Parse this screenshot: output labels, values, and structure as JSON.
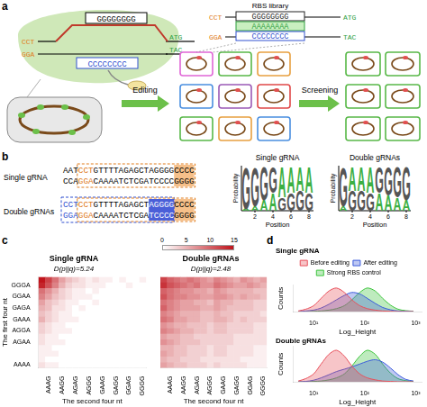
{
  "panels": {
    "a": {
      "label": "a",
      "complex": {
        "pam_top": "CCT",
        "pam_bottom": "GGA",
        "guide": "GGGGGGGG",
        "target": "CCCCCCCC",
        "start_top": "ATG",
        "start_bottom": "TAC"
      },
      "library": {
        "title": "RBS library",
        "pam_top": "CCT",
        "pam_bottom": "GGA",
        "rows": [
          "GGGGGGGG",
          "AAAAAAAA",
          "CCCCCCCC"
        ],
        "start_top": "ATG",
        "start_bottom": "TAC"
      },
      "steps": [
        "Editing",
        "Screening"
      ]
    },
    "b": {
      "label": "b",
      "sequences": [
        {
          "name": "Single gRNA",
          "top": "AATCCTGTTTTAGAGCTAGGGGCCCC",
          "bottom": "CCAGGACAAAATCTCGATCCCCGGGG"
        },
        {
          "name": "Double gRNAs",
          "top": "CCTCCTGTTTTAGAGCTAGGGGCCCC",
          "bottom": "GGAGGACAAAATCTCGATCCCCGGGG"
        }
      ],
      "logos": [
        {
          "title": "Single gRNA",
          "ylabel": "Probability",
          "xlabel": "Position",
          "ylim": [
            0,
            1
          ],
          "xticks": [
            2,
            4,
            6,
            8
          ],
          "positions": [
            [
              {
                "letter": "A",
                "p": 0.05
              },
              {
                "letter": "G",
                "p": 0.95
              }
            ],
            [
              {
                "letter": "A",
                "p": 0.1
              },
              {
                "letter": "G",
                "p": 0.9
              }
            ],
            [
              {
                "letter": "A",
                "p": 0.25
              },
              {
                "letter": "G",
                "p": 0.75
              }
            ],
            [
              {
                "letter": "A",
                "p": 0.4
              },
              {
                "letter": "G",
                "p": 0.6
              }
            ],
            [
              {
                "letter": "G",
                "p": 0.3
              },
              {
                "letter": "A",
                "p": 0.7
              }
            ],
            [
              {
                "letter": "G",
                "p": 0.4
              },
              {
                "letter": "A",
                "p": 0.6
              }
            ],
            [
              {
                "letter": "G",
                "p": 0.45
              },
              {
                "letter": "A",
                "p": 0.55
              }
            ],
            [
              {
                "letter": "G",
                "p": 0.4
              },
              {
                "letter": "A",
                "p": 0.6
              }
            ]
          ]
        },
        {
          "title": "Double gRNAs",
          "ylabel": "Probability",
          "xlabel": "Position",
          "ylim": [
            0,
            1
          ],
          "xticks": [
            2,
            4,
            6,
            8
          ],
          "positions": [
            [
              {
                "letter": "A",
                "p": 0.1
              },
              {
                "letter": "G",
                "p": 0.9
              }
            ],
            [
              {
                "letter": "G",
                "p": 0.45
              },
              {
                "letter": "A",
                "p": 0.55
              }
            ],
            [
              {
                "letter": "G",
                "p": 0.45
              },
              {
                "letter": "A",
                "p": 0.55
              }
            ],
            [
              {
                "letter": "G",
                "p": 0.4
              },
              {
                "letter": "A",
                "p": 0.6
              }
            ],
            [
              {
                "letter": "A",
                "p": 0.4
              },
              {
                "letter": "G",
                "p": 0.6
              }
            ],
            [
              {
                "letter": "A",
                "p": 0.35
              },
              {
                "letter": "G",
                "p": 0.65
              }
            ],
            [
              {
                "letter": "A",
                "p": 0.3
              },
              {
                "letter": "G",
                "p": 0.7
              }
            ],
            [
              {
                "letter": "A",
                "p": 0.25
              },
              {
                "letter": "G",
                "p": 0.75
              }
            ]
          ]
        }
      ]
    },
    "c": {
      "label": "c"
    },
    "d": {
      "label": "d"
    }
  },
  "chart_data": [
    {
      "type": "heatmap",
      "title": "Single gRNA",
      "subtitle": "D(p||q)=5.24",
      "xlabel": "The second four nt",
      "ylabel": "The first four nt",
      "x_categories": [
        null,
        "AAAG",
        null,
        "AAGG",
        null,
        "AGAG",
        null,
        "AGGG",
        null,
        "GAAG",
        null,
        "GAGG",
        null,
        "GGAG",
        null,
        "GGGG"
      ],
      "y_categories": [
        null,
        "GGGA",
        null,
        "GGAA",
        null,
        "GAGA",
        null,
        "GAAA",
        null,
        "AGGA",
        null,
        "AGAA",
        null,
        null,
        null,
        "AAAA"
      ],
      "color": "#c0141c",
      "color_range": [
        0,
        15
      ],
      "color_ticks": [
        0,
        5,
        10,
        15
      ],
      "cells": [
        [
          15,
          12,
          9,
          6,
          4,
          3,
          2,
          1,
          2,
          1,
          1,
          0,
          1,
          0,
          0,
          1
        ],
        [
          14,
          11,
          8,
          5,
          3,
          2,
          2,
          1,
          1,
          1,
          0,
          0,
          0,
          1,
          0,
          0
        ],
        [
          9,
          7,
          5,
          3,
          2,
          1,
          1,
          0,
          1,
          0,
          0,
          0,
          0,
          0,
          0,
          0
        ],
        [
          8,
          6,
          4,
          3,
          2,
          1,
          1,
          1,
          0,
          0,
          0,
          0,
          0,
          0,
          0,
          0
        ],
        [
          6,
          4,
          3,
          2,
          1,
          1,
          0,
          0,
          1,
          0,
          0,
          0,
          0,
          0,
          0,
          0
        ],
        [
          5,
          4,
          2,
          2,
          1,
          0,
          1,
          0,
          0,
          0,
          0,
          0,
          0,
          0,
          0,
          0
        ],
        [
          4,
          3,
          2,
          1,
          1,
          0,
          0,
          0,
          0,
          0,
          0,
          0,
          0,
          0,
          0,
          0
        ],
        [
          5,
          3,
          2,
          1,
          1,
          1,
          0,
          0,
          0,
          0,
          0,
          0,
          0,
          0,
          0,
          0
        ],
        [
          3,
          2,
          1,
          1,
          0,
          0,
          0,
          0,
          0,
          0,
          0,
          0,
          0,
          0,
          0,
          0
        ],
        [
          3,
          2,
          1,
          1,
          1,
          0,
          0,
          0,
          0,
          0,
          0,
          0,
          0,
          0,
          0,
          0
        ],
        [
          2,
          1,
          1,
          0,
          0,
          0,
          0,
          0,
          0,
          0,
          0,
          0,
          0,
          0,
          0,
          0
        ],
        [
          2,
          1,
          1,
          1,
          0,
          0,
          0,
          0,
          0,
          0,
          0,
          0,
          0,
          0,
          0,
          0
        ],
        [
          1,
          1,
          0,
          0,
          0,
          0,
          0,
          0,
          0,
          0,
          0,
          0,
          0,
          0,
          0,
          0
        ],
        [
          1,
          1,
          1,
          0,
          0,
          0,
          0,
          0,
          0,
          0,
          0,
          0,
          0,
          0,
          0,
          0
        ],
        [
          1,
          0,
          0,
          0,
          0,
          0,
          0,
          0,
          0,
          0,
          0,
          0,
          0,
          0,
          0,
          0
        ],
        [
          2,
          1,
          1,
          0,
          0,
          0,
          0,
          0,
          0,
          0,
          0,
          0,
          0,
          0,
          0,
          0
        ]
      ]
    },
    {
      "type": "heatmap",
      "title": "Double gRNAs",
      "subtitle": "D(p||q)=2.48",
      "xlabel": "The second four nt",
      "tick_labels": "x",
      "x_categories": [
        null,
        "AAAG",
        null,
        "AAGG",
        null,
        "AGAG",
        null,
        "AGGG",
        null,
        "GAAG",
        null,
        "GAGG",
        null,
        "GGAG",
        null,
        "GGGG"
      ],
      "color": "#c0141c",
      "color_range": [
        0,
        15
      ],
      "cells": [
        [
          12,
          10,
          9,
          8,
          9,
          8,
          7,
          6,
          8,
          7,
          6,
          5,
          7,
          6,
          5,
          6
        ],
        [
          13,
          11,
          10,
          9,
          8,
          9,
          7,
          7,
          9,
          8,
          7,
          6,
          6,
          7,
          6,
          5
        ],
        [
          10,
          9,
          8,
          7,
          7,
          6,
          6,
          5,
          7,
          6,
          5,
          5,
          5,
          5,
          4,
          4
        ],
        [
          11,
          9,
          8,
          8,
          7,
          7,
          6,
          6,
          7,
          7,
          6,
          5,
          6,
          5,
          5,
          4
        ],
        [
          9,
          8,
          7,
          6,
          6,
          5,
          5,
          4,
          6,
          5,
          5,
          4,
          4,
          4,
          3,
          3
        ],
        [
          10,
          8,
          7,
          6,
          6,
          6,
          5,
          5,
          6,
          5,
          4,
          4,
          4,
          4,
          3,
          3
        ],
        [
          8,
          7,
          6,
          5,
          5,
          5,
          4,
          4,
          5,
          4,
          4,
          3,
          3,
          3,
          3,
          2
        ],
        [
          9,
          8,
          6,
          6,
          5,
          5,
          4,
          4,
          5,
          5,
          4,
          3,
          4,
          3,
          3,
          3
        ],
        [
          7,
          6,
          5,
          5,
          4,
          4,
          4,
          3,
          4,
          4,
          3,
          3,
          3,
          3,
          2,
          2
        ],
        [
          8,
          7,
          6,
          5,
          5,
          4,
          4,
          3,
          4,
          4,
          3,
          3,
          3,
          3,
          2,
          2
        ],
        [
          6,
          5,
          5,
          4,
          4,
          3,
          3,
          3,
          3,
          3,
          3,
          2,
          2,
          2,
          2,
          2
        ],
        [
          7,
          6,
          5,
          4,
          4,
          4,
          3,
          3,
          3,
          3,
          3,
          2,
          2,
          2,
          2,
          2
        ],
        [
          5,
          5,
          4,
          4,
          3,
          3,
          3,
          2,
          3,
          3,
          2,
          2,
          2,
          2,
          1,
          1
        ],
        [
          6,
          5,
          4,
          4,
          3,
          3,
          3,
          2,
          3,
          3,
          2,
          2,
          2,
          2,
          1,
          1
        ],
        [
          5,
          4,
          4,
          3,
          3,
          3,
          2,
          2,
          2,
          2,
          2,
          2,
          1,
          1,
          1,
          1
        ],
        [
          6,
          5,
          4,
          4,
          3,
          3,
          3,
          2,
          3,
          2,
          2,
          2,
          2,
          1,
          1,
          1
        ]
      ]
    },
    {
      "type": "area",
      "title": "Single gRNA",
      "xlabel": "Log_Height",
      "ylabel": "Counts",
      "log": "x",
      "grid": false,
      "legend": "top",
      "tick_labels": "x",
      "x": [
        5,
        7,
        10,
        14,
        20,
        28,
        40,
        56,
        80,
        112,
        160,
        224,
        320,
        450,
        640,
        900
      ],
      "xlim": [
        4,
        1300
      ],
      "xticks": [
        {
          "value": 10,
          "label": "10¹"
        },
        {
          "value": 100,
          "label": "10²"
        },
        {
          "value": 1000,
          "label": "10³"
        }
      ],
      "ylim": [
        0,
        90
      ],
      "series": [
        {
          "name": "Before editing",
          "color": "#e8505b",
          "values": [
            2,
            8,
            20,
            45,
            70,
            80,
            65,
            40,
            20,
            10,
            5,
            2,
            1,
            0,
            0,
            0
          ]
        },
        {
          "name": "After editing",
          "color": "#3b5bdb",
          "values": [
            0,
            2,
            5,
            12,
            25,
            40,
            55,
            65,
            60,
            45,
            28,
            14,
            6,
            2,
            1,
            0
          ]
        },
        {
          "name": "Strong RBS control",
          "color": "#3cc43c",
          "values": [
            0,
            0,
            1,
            2,
            5,
            10,
            20,
            40,
            65,
            80,
            70,
            45,
            22,
            8,
            3,
            1
          ]
        }
      ]
    },
    {
      "type": "area",
      "title": "Double gRNAs",
      "xlabel": "Log_Height",
      "ylabel": "Counts",
      "log": "x",
      "grid": false,
      "tick_labels": "x",
      "x": [
        5,
        7,
        10,
        14,
        20,
        28,
        40,
        56,
        80,
        112,
        160,
        224,
        320,
        450,
        640,
        900
      ],
      "xlim": [
        4,
        1300
      ],
      "xticks": [
        {
          "value": 10,
          "label": "10¹"
        },
        {
          "value": 100,
          "label": "10²"
        },
        {
          "value": 1000,
          "label": "10³"
        }
      ],
      "ylim": [
        0,
        90
      ],
      "series": [
        {
          "name": "Before editing",
          "color": "#e8505b",
          "values": [
            2,
            8,
            20,
            45,
            70,
            80,
            65,
            40,
            20,
            10,
            5,
            2,
            1,
            0,
            0,
            0
          ]
        },
        {
          "name": "After editing",
          "color": "#3b5bdb",
          "values": [
            0,
            1,
            4,
            10,
            18,
            26,
            32,
            38,
            45,
            52,
            56,
            50,
            35,
            18,
            6,
            2
          ]
        },
        {
          "name": "Strong RBS control",
          "color": "#3cc43c",
          "values": [
            0,
            0,
            1,
            2,
            5,
            10,
            20,
            40,
            65,
            80,
            70,
            45,
            22,
            8,
            3,
            1
          ]
        }
      ]
    }
  ]
}
